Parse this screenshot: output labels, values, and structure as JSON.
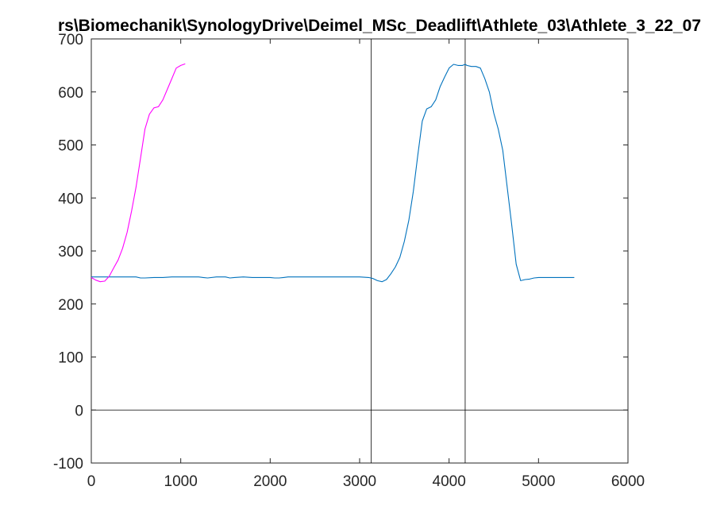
{
  "chart_data": {
    "type": "line",
    "title": "rs\\Biomechanik\\SynologyDrive\\Deimel_MSc_Deadlift\\Athlete_03\\Athlete_3_22_07",
    "xlim": [
      0,
      6000
    ],
    "ylim": [
      -100,
      700
    ],
    "xticks": [
      0,
      1000,
      2000,
      3000,
      4000,
      5000,
      6000
    ],
    "yticks": [
      -100,
      0,
      100,
      200,
      300,
      400,
      500,
      600,
      700
    ],
    "grid": false,
    "reference_lines": {
      "horizontal_y": [
        0
      ],
      "vertical_x": [
        3130,
        4180
      ]
    },
    "series": [
      {
        "color": "#0072BD",
        "x": [
          0,
          100,
          200,
          300,
          400,
          500,
          550,
          600,
          700,
          800,
          900,
          1000,
          1100,
          1200,
          1250,
          1300,
          1400,
          1500,
          1550,
          1600,
          1700,
          1800,
          1900,
          2000,
          2050,
          2100,
          2150,
          2200,
          2300,
          2400,
          2500,
          2600,
          2700,
          2800,
          2900,
          3000,
          3100,
          3150,
          3200,
          3250,
          3300,
          3350,
          3400,
          3450,
          3500,
          3550,
          3600,
          3650,
          3700,
          3750,
          3800,
          3850,
          3900,
          3950,
          4000,
          4050,
          4100,
          4150,
          4180,
          4200,
          4250,
          4300,
          4350,
          4400,
          4450,
          4500,
          4550,
          4600,
          4650,
          4700,
          4750,
          4800,
          4850,
          4900,
          4950,
          5000,
          5100,
          5200,
          5300,
          5400
        ],
        "y": [
          251,
          251,
          251,
          251,
          251,
          251,
          249,
          249,
          250,
          250,
          251,
          251,
          251,
          251,
          250,
          249,
          251,
          251,
          249,
          250,
          251,
          250,
          250,
          250,
          249,
          249,
          250,
          251,
          251,
          251,
          251,
          251,
          251,
          251,
          251,
          251,
          250,
          248,
          244,
          242,
          246,
          257,
          270,
          288,
          318,
          358,
          412,
          480,
          545,
          568,
          572,
          585,
          610,
          628,
          645,
          652,
          650,
          650,
          652,
          650,
          648,
          648,
          645,
          625,
          600,
          560,
          530,
          490,
          420,
          350,
          275,
          244,
          246,
          247,
          249,
          250,
          250,
          250,
          250,
          250
        ]
      },
      {
        "color": "#FF00FF",
        "x": [
          0,
          50,
          100,
          150,
          200,
          250,
          300,
          350,
          400,
          450,
          500,
          550,
          600,
          650,
          700,
          750,
          800,
          850,
          900,
          950,
          1000,
          1050
        ],
        "y": [
          250,
          245,
          242,
          243,
          252,
          268,
          283,
          305,
          335,
          375,
          420,
          475,
          530,
          558,
          570,
          572,
          585,
          605,
          625,
          645,
          650,
          653
        ]
      }
    ]
  }
}
